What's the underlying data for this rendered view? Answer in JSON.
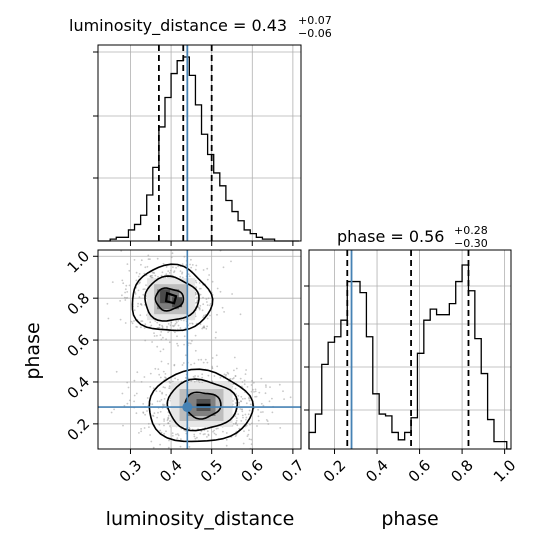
{
  "chart_data": {
    "type": "corner",
    "parameters": [
      {
        "name": "luminosity_distance",
        "title_prefix": "luminosity_distance = ",
        "median": "0.43",
        "plus": "+0.07",
        "minus": "−0.06",
        "quantiles": [
          0.37,
          0.43,
          0.5
        ],
        "truth": 0.44,
        "xlim": [
          0.22,
          0.72
        ],
        "ticks": [
          "0.3",
          "0.4",
          "0.5",
          "0.6",
          "0.7"
        ],
        "tick_values": [
          0.3,
          0.4,
          0.5,
          0.6,
          0.7
        ],
        "xlabel": "luminosity_distance",
        "hist_edges": [
          0.22,
          0.235,
          0.25,
          0.265,
          0.28,
          0.295,
          0.31,
          0.325,
          0.34,
          0.355,
          0.37,
          0.385,
          0.4,
          0.415,
          0.43,
          0.445,
          0.46,
          0.475,
          0.49,
          0.505,
          0.52,
          0.535,
          0.55,
          0.565,
          0.58,
          0.595,
          0.61,
          0.625,
          0.64,
          0.655,
          0.67,
          0.685,
          0.7,
          0.715
        ],
        "hist_counts": [
          0,
          0,
          1,
          2,
          2,
          6,
          9,
          14,
          25,
          40,
          62,
          78,
          91,
          98,
          100,
          90,
          74,
          58,
          47,
          37,
          30,
          22,
          16,
          11,
          6,
          4,
          2,
          1,
          1,
          0,
          0,
          0,
          0
        ]
      },
      {
        "name": "phase",
        "title_prefix": "phase = ",
        "median": "0.56",
        "plus": "+0.28",
        "minus": "−0.30",
        "quantiles": [
          0.26,
          0.56,
          0.83
        ],
        "truth": 0.28,
        "xlim": [
          0.08,
          1.03
        ],
        "ticks": [
          "0.2",
          "0.4",
          "0.6",
          "0.8",
          "1.0"
        ],
        "tick_values": [
          0.2,
          0.4,
          0.6,
          0.8,
          1.0
        ],
        "xlabel": "phase",
        "hist_edges": [
          0.08,
          0.11,
          0.14,
          0.17,
          0.2,
          0.23,
          0.26,
          0.29,
          0.32,
          0.35,
          0.38,
          0.41,
          0.44,
          0.47,
          0.5,
          0.53,
          0.56,
          0.59,
          0.62,
          0.65,
          0.68,
          0.71,
          0.74,
          0.77,
          0.8,
          0.83,
          0.86,
          0.89,
          0.92,
          0.95,
          0.98,
          1.01,
          1.03
        ],
        "hist_counts": [
          9,
          19,
          46,
          58,
          61,
          70,
          91,
          91,
          85,
          61,
          30,
          19,
          18,
          9,
          5,
          9,
          17,
          52,
          70,
          76,
          73,
          73,
          79,
          91,
          100,
          86,
          60,
          41,
          16,
          4,
          4,
          0
        ]
      }
    ],
    "joint": {
      "ylabel": "phase",
      "ylim": [
        0.08,
        1.03
      ],
      "yticks": [
        "0.2",
        "0.4",
        "0.6",
        "0.8",
        "1.0"
      ],
      "ytick_values": [
        0.2,
        0.4,
        0.6,
        0.8,
        1.0
      ],
      "truth": [
        0.44,
        0.28
      ],
      "modes": [
        {
          "x": 0.4,
          "y": 0.795
        },
        {
          "x": 0.475,
          "y": 0.29
        }
      ]
    },
    "colors": {
      "truth": "#4682b4",
      "hist": "#000000",
      "quantile": "#000000",
      "grid": "#b0b0b0"
    },
    "grid": true
  }
}
